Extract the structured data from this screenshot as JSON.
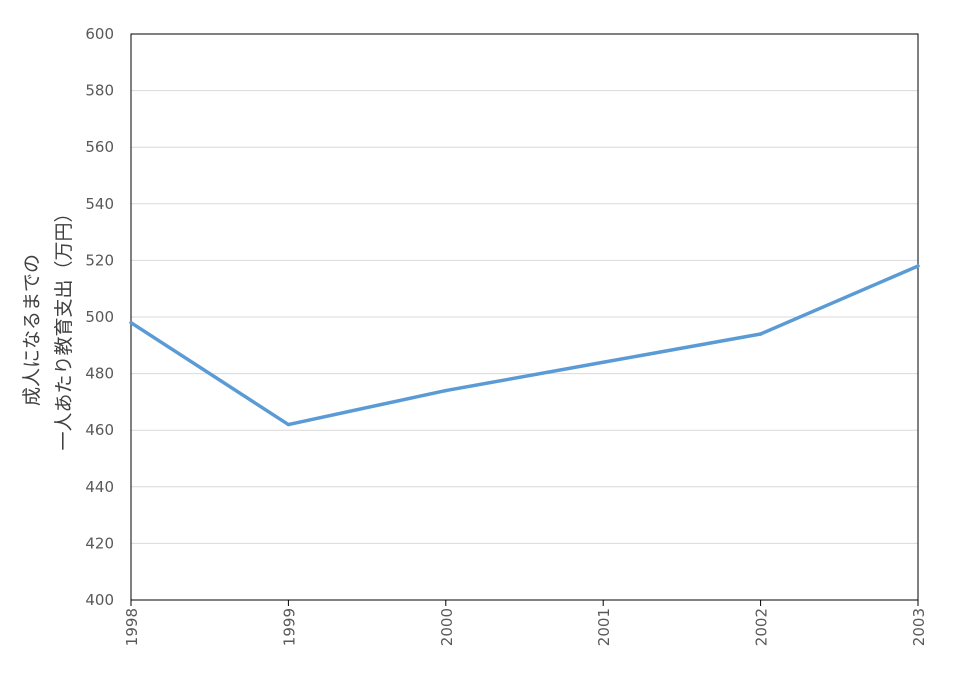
{
  "chart_data": {
    "type": "line",
    "title": "",
    "xlabel": "",
    "ylabel_lines": [
      "成人になるまでの",
      "一人あたり教育支出（万円）"
    ],
    "categories": [
      "1998",
      "1999",
      "2000",
      "2001",
      "2002",
      "2003"
    ],
    "series": [
      {
        "values": [
          498,
          462,
          474,
          484,
          494,
          518
        ],
        "color": "#5b9bd5"
      }
    ],
    "ylim": [
      400,
      600
    ],
    "yticks": [
      400,
      420,
      440,
      460,
      480,
      500,
      520,
      540,
      560,
      580,
      600
    ],
    "ytick_labels": [
      "400",
      "420",
      "440",
      "460",
      "480",
      "500",
      "520",
      "540",
      "560",
      "580",
      "600"
    ],
    "grid": true,
    "gridline_color": "#d9d9d9",
    "axis_color": "#000000",
    "legend": "none"
  }
}
